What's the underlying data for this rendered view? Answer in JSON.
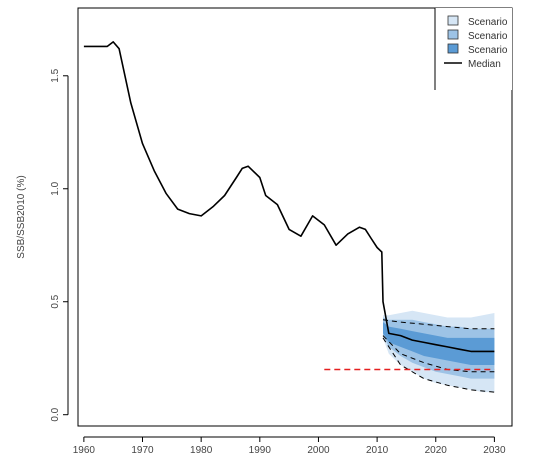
{
  "chart_data": {
    "type": "area",
    "ylabel": "SSB/SSB2010 (%)",
    "xlim": [
      1959,
      2033
    ],
    "ylim": [
      -0.05,
      1.8
    ],
    "xticks": [
      1960,
      1970,
      1980,
      1990,
      2000,
      2010,
      2020,
      2030
    ],
    "yticks": [
      0.0,
      0.5,
      1.0,
      1.5
    ],
    "ytick_labels": [
      "0.0",
      "0.5",
      "1.0",
      "1.5"
    ],
    "grid": false,
    "legend_position": "top-right",
    "legend": [
      {
        "label": "Scenario",
        "kind": "band",
        "color": "#d6e6f5"
      },
      {
        "label": "Scenario",
        "kind": "band",
        "color": "#9dc3e6"
      },
      {
        "label": "Scenario",
        "kind": "band",
        "color": "#5b9bd5"
      },
      {
        "label": "Median",
        "kind": "line",
        "color": "#000000"
      }
    ],
    "series": [
      {
        "name": "Median",
        "color": "#000000",
        "x": [
          1960,
          1964,
          1965,
          1966,
          1968,
          1970,
          1972,
          1974,
          1976,
          1978,
          1980,
          1982,
          1984,
          1986,
          1987,
          1988,
          1990,
          1991,
          1993,
          1995,
          1997,
          1999,
          2001,
          2003,
          2005,
          2007,
          2008,
          2009,
          2010,
          2010.8,
          2011,
          2012,
          2014,
          2016,
          2018,
          2020,
          2022,
          2024,
          2026,
          2028,
          2030
        ],
        "y": [
          1.63,
          1.63,
          1.65,
          1.62,
          1.38,
          1.2,
          1.08,
          0.98,
          0.91,
          0.89,
          0.88,
          0.92,
          0.97,
          1.05,
          1.09,
          1.1,
          1.05,
          0.97,
          0.93,
          0.82,
          0.79,
          0.88,
          0.84,
          0.75,
          0.8,
          0.83,
          0.82,
          0.78,
          0.74,
          0.72,
          0.5,
          0.36,
          0.35,
          0.33,
          0.32,
          0.31,
          0.3,
          0.29,
          0.28,
          0.28,
          0.28
        ]
      },
      {
        "name": "",
        "color": "#000000",
        "dash": "dashed",
        "x": [
          2001,
          2030
        ],
        "y": [
          0.2,
          0.2
        ],
        "line_color": "#e52020"
      }
    ],
    "bands": [
      {
        "color": "#d6e6f5",
        "x": [
          2011,
          2012,
          2014,
          2016,
          2018,
          2020,
          2022,
          2024,
          2026,
          2028,
          2030
        ],
        "lower": [
          0.34,
          0.27,
          0.22,
          0.19,
          0.16,
          0.14,
          0.13,
          0.12,
          0.11,
          0.1,
          0.1
        ],
        "upper": [
          0.44,
          0.44,
          0.45,
          0.46,
          0.45,
          0.44,
          0.43,
          0.43,
          0.43,
          0.44,
          0.45
        ]
      },
      {
        "color": "#9dc3e6",
        "x": [
          2011,
          2012,
          2014,
          2016,
          2018,
          2020,
          2022,
          2024,
          2026,
          2028,
          2030
        ],
        "lower": [
          0.35,
          0.3,
          0.26,
          0.23,
          0.21,
          0.19,
          0.18,
          0.17,
          0.16,
          0.16,
          0.16
        ],
        "upper": [
          0.43,
          0.42,
          0.42,
          0.42,
          0.41,
          0.4,
          0.39,
          0.39,
          0.38,
          0.38,
          0.38
        ]
      },
      {
        "color": "#5b9bd5",
        "x": [
          2011,
          2012,
          2014,
          2016,
          2018,
          2020,
          2022,
          2024,
          2026,
          2028,
          2030
        ],
        "lower": [
          0.36,
          0.32,
          0.3,
          0.28,
          0.26,
          0.25,
          0.24,
          0.23,
          0.22,
          0.22,
          0.22
        ],
        "upper": [
          0.41,
          0.39,
          0.38,
          0.37,
          0.36,
          0.35,
          0.34,
          0.34,
          0.34,
          0.34,
          0.34
        ]
      }
    ],
    "quantile_lines": [
      {
        "x": [
          2011,
          2014,
          2018,
          2022,
          2026,
          2030
        ],
        "y": [
          0.42,
          0.41,
          0.4,
          0.39,
          0.38,
          0.38
        ]
      },
      {
        "x": [
          2011,
          2014,
          2018,
          2022,
          2026,
          2030
        ],
        "y": [
          0.35,
          0.27,
          0.23,
          0.2,
          0.19,
          0.19
        ]
      },
      {
        "x": [
          2011,
          2014,
          2018,
          2022,
          2026,
          2030
        ],
        "y": [
          0.34,
          0.22,
          0.16,
          0.13,
          0.11,
          0.1
        ]
      }
    ]
  }
}
